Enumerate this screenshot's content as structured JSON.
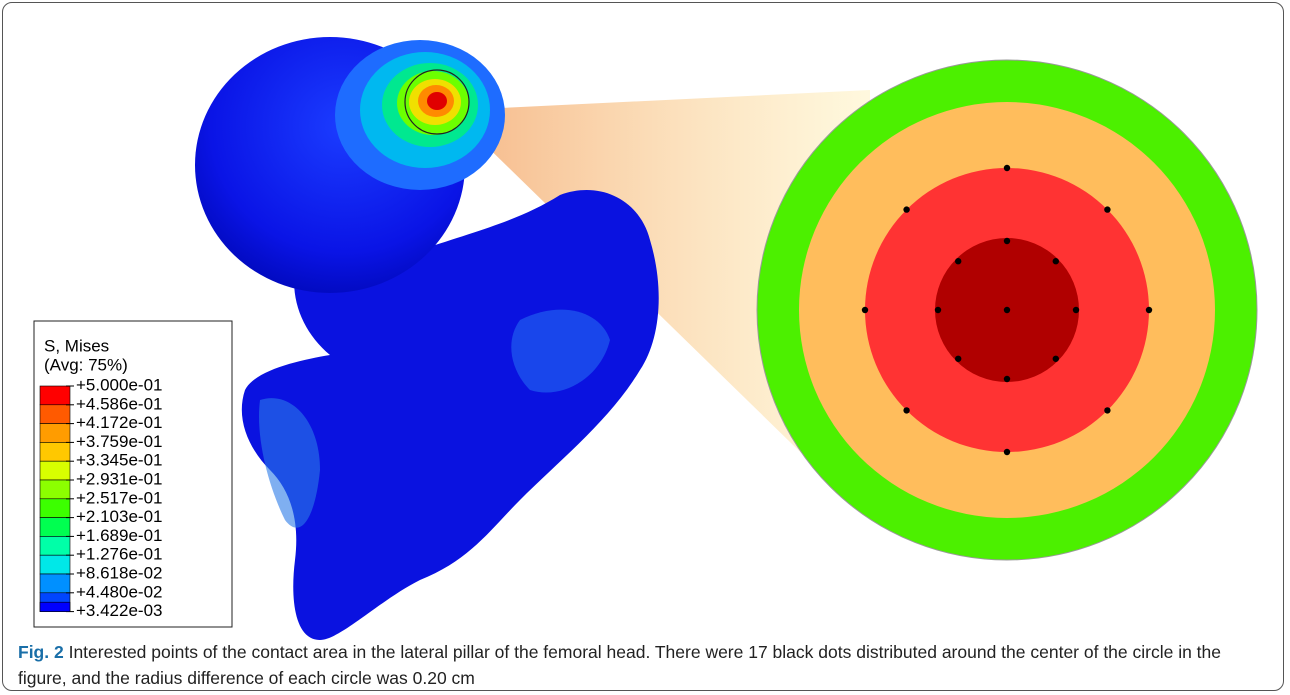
{
  "legend": {
    "title": "S, Mises",
    "subtitle": "(Avg: 75%)",
    "labels": [
      "+5.000e-01",
      "+4.586e-01",
      "+4.172e-01",
      "+3.759e-01",
      "+3.345e-01",
      "+2.931e-01",
      "+2.517e-01",
      "+2.103e-01",
      "+1.689e-01",
      "+1.276e-01",
      "+8.618e-02",
      "+4.480e-02",
      "+3.422e-03"
    ],
    "colors": [
      "#ff0000",
      "#ff5a00",
      "#ff9c00",
      "#ffc800",
      "#d8ff00",
      "#8cff00",
      "#3cff00",
      "#00ff50",
      "#00ffa8",
      "#00e8e8",
      "#0090ff",
      "#0046ff",
      "#0000ff"
    ]
  },
  "caption": {
    "label": "Fig. 2",
    "text": "Interested points of the contact area in the lateral pillar of the femoral head. There were 17 black dots distributed around the center of the circle in the figure, and the radius difference of each circle was 0.20 cm"
  }
}
